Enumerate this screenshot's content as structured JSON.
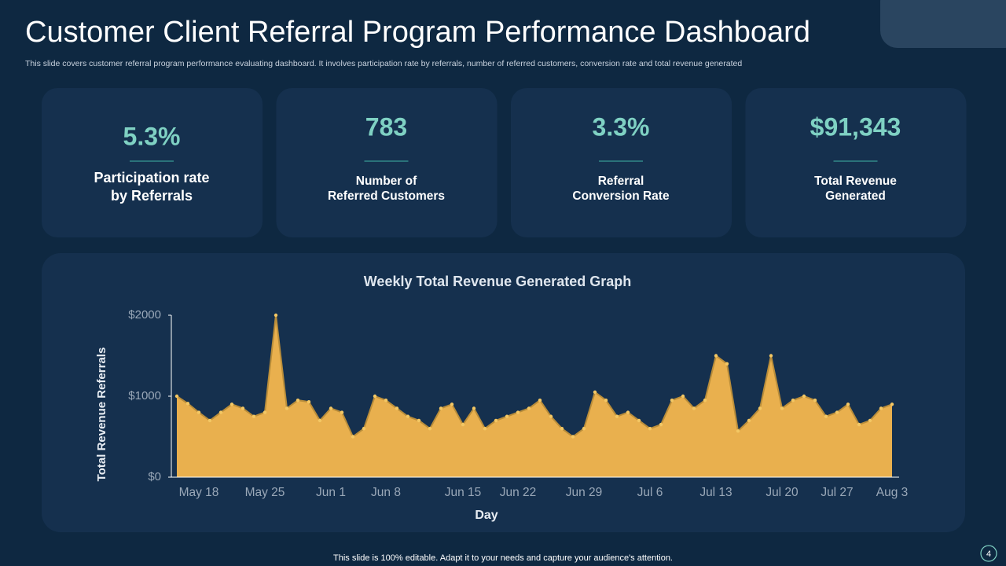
{
  "header": {
    "title": "Customer Client Referral Program Performance Dashboard",
    "subtitle": "This slide covers customer referral program performance evaluating dashboard. It involves participation rate by referrals, number of referred customers, conversion rate and total revenue generated"
  },
  "kpis": [
    {
      "value": "5.3%",
      "label": [
        "Participation rate",
        "by Referrals"
      ]
    },
    {
      "value": "783",
      "label": [
        "Number of",
        "Referred Customers"
      ]
    },
    {
      "value": "3.3%",
      "label": [
        "Referral",
        "Conversion Rate"
      ]
    },
    {
      "value": "$91,343",
      "label": [
        "Total Revenue",
        "Generated"
      ]
    }
  ],
  "chart_data": {
    "type": "area",
    "title": "Weekly Total Revenue Generated Graph",
    "x_label": "Day",
    "y_label": "Total Revenue Referrals",
    "color": "#e9b04e",
    "line_color": "#b98d3a",
    "categories": [
      null,
      null,
      "May 18",
      null,
      null,
      null,
      null,
      null,
      "May 25",
      null,
      null,
      null,
      null,
      null,
      "Jun 1",
      null,
      null,
      null,
      null,
      "Jun 8",
      null,
      null,
      null,
      null,
      null,
      null,
      "Jun 15",
      null,
      null,
      null,
      null,
      "Jun 22",
      null,
      null,
      null,
      null,
      null,
      "Jun 29",
      null,
      null,
      null,
      null,
      null,
      "Jul 6",
      null,
      null,
      null,
      null,
      null,
      "Jul 13",
      null,
      null,
      null,
      null,
      null,
      "Jul 20",
      null,
      null,
      null,
      null,
      "Jul 27",
      null,
      null,
      null,
      null,
      "Aug 3"
    ],
    "values": [
      1000,
      910,
      800,
      700,
      800,
      900,
      850,
      750,
      800,
      2000,
      850,
      950,
      930,
      700,
      850,
      800,
      500,
      600,
      1000,
      950,
      850,
      750,
      700,
      600,
      850,
      900,
      650,
      850,
      600,
      700,
      750,
      800,
      850,
      950,
      750,
      600,
      500,
      600,
      1050,
      950,
      750,
      800,
      700,
      600,
      650,
      950,
      1000,
      850,
      950,
      1500,
      1400,
      570,
      700,
      850,
      1500,
      850,
      950,
      1000,
      950,
      750,
      800,
      900,
      650,
      700,
      850,
      900
    ],
    "ylim": [
      0,
      2000
    ],
    "yticks": [
      {
        "value": 0,
        "label": "$0"
      },
      {
        "value": 1000,
        "label": "$1000"
      },
      {
        "value": 2000,
        "label": "$2000"
      }
    ]
  },
  "footer": {
    "note": "This slide is 100% editable. Adapt it to your needs and capture your audience's attention.",
    "page": "4"
  }
}
